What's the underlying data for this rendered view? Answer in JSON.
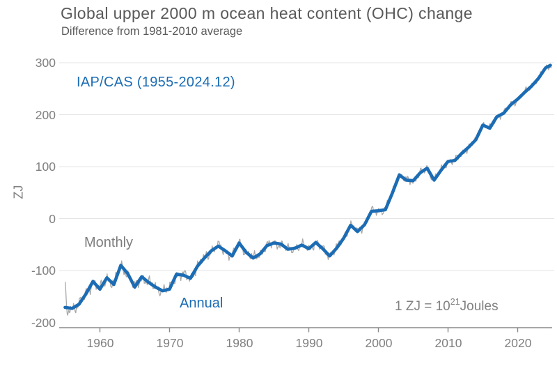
{
  "header": {
    "title": "Global upper 2000 m ocean heat content (OHC) change",
    "subtitle": "Difference from 1981-2010 average"
  },
  "annotations": {
    "dataset_label": "IAP/CAS (1955-2024.12)",
    "monthly_label": "Monthly",
    "annual_label": "Annual",
    "unit_note": {
      "prefix": "1 ZJ =  10",
      "exponent": "21",
      "suffix": "Joules"
    }
  },
  "axes": {
    "y_label": "ZJ",
    "y_tick_labels": [
      "300",
      "200",
      "100",
      "0",
      "-100",
      "-200"
    ],
    "x_tick_labels": [
      "1960",
      "1970",
      "1980",
      "1990",
      "2000",
      "2010",
      "2020"
    ]
  },
  "colors": {
    "annual_line": "#1b6cb4",
    "monthly_line": "#a8a8a8",
    "gridline": "#e4e4e4",
    "axis_line": "#8a8a8a",
    "tick_text": "#808080",
    "title_text": "#595959",
    "accent_blue": "#1b6cb4"
  },
  "chart_data": {
    "type": "line",
    "title": "Global upper 2000 m ocean heat content (OHC) change",
    "subtitle": "Difference from 1981-2010 average",
    "xlabel": "",
    "ylabel": "ZJ",
    "unit_definition": "1 ZJ = 10^21 Joules",
    "xlim": [
      1954.8,
      2025.5
    ],
    "ylim": [
      -210,
      310
    ],
    "x_tick_values": [
      1960,
      1970,
      1980,
      1990,
      2000,
      2010,
      2020
    ],
    "y_tick_values": [
      300,
      200,
      100,
      0,
      -100,
      -200
    ],
    "grid": "horizontal light-gray lines at -100,0,100,200,300",
    "legend_position": "in-plot text labels (Monthly gray, Annual blue)",
    "series": [
      {
        "name": "Annual",
        "color": "#1b6cb4",
        "start_year": 1955,
        "values": [
          -171,
          -173,
          -165,
          -145,
          -121,
          -136,
          -114,
          -127,
          -90,
          -106,
          -132,
          -112,
          -123,
          -132,
          -139,
          -136,
          -107,
          -109,
          -115,
          -92,
          -76,
          -62,
          -53,
          -62,
          -72,
          -47,
          -65,
          -76,
          -68,
          -52,
          -47,
          -49,
          -59,
          -57,
          -51,
          -58,
          -46,
          -58,
          -72,
          -57,
          -38,
          -13,
          -25,
          -12,
          14,
          15,
          17,
          49,
          84,
          74,
          73,
          88,
          97,
          74,
          93,
          110,
          112,
          126,
          138,
          152,
          180,
          174,
          196,
          203,
          219,
          230,
          243,
          255,
          270,
          290
        ],
        "end_extension": {
          "x": 2024.7,
          "value": 295
        }
      },
      {
        "name": "Monthly",
        "color": "#a8a8a8",
        "description": "monthly values oscillating around the Annual curve, 1955-2024.12",
        "wiggle_amplitude_zj_start": 13,
        "wiggle_amplitude_zj_end": 7,
        "first_months_1955": [
          -122,
          -145,
          -168,
          -182,
          -186,
          -180
        ],
        "end_x": 2024.92,
        "end_value": 290
      }
    ]
  }
}
